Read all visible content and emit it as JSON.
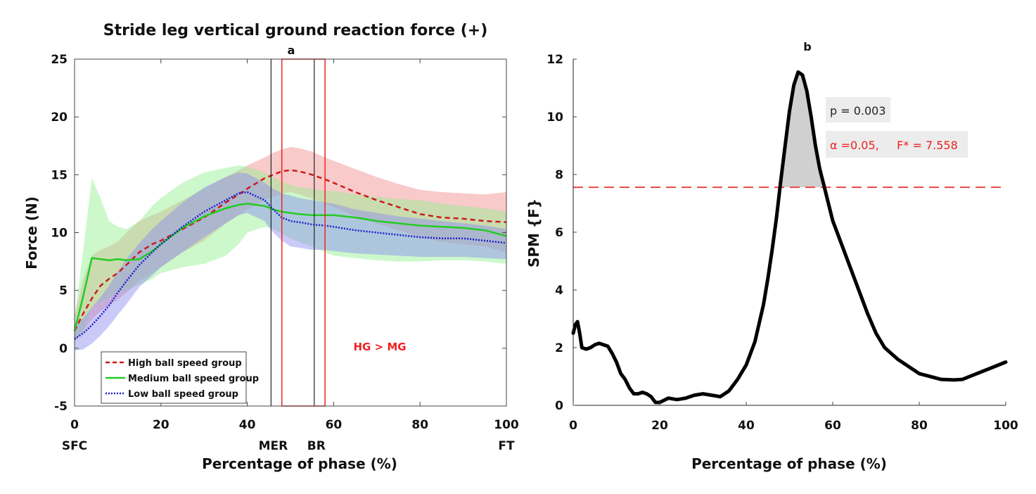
{
  "colors": {
    "high": "#cc1a1a",
    "medium": "#22cc22",
    "low": "#1a1acc",
    "high_band": "#f28a8a",
    "medium_band": "#8ff08f",
    "low_band": "#8a8af2",
    "highlight_box": "#ee2222",
    "threshold": "#ee4444",
    "spm_curve": "#000000",
    "sig_fill": "#d0d0d0",
    "annot_bg": "#ececec"
  },
  "chart_data": [
    {
      "type": "line",
      "panel_label": "a",
      "title": "Stride leg vertical ground reaction force (+)",
      "xlabel": "Percentage of phase (%)",
      "ylabel": "Force (N)",
      "xlim": [
        0,
        100
      ],
      "ylim": [
        -5,
        25
      ],
      "xticks": [
        0,
        20,
        40,
        60,
        80,
        100
      ],
      "yticks": [
        -5,
        0,
        5,
        10,
        15,
        20,
        25
      ],
      "event_labels": [
        {
          "label": "SFC",
          "x": 0
        },
        {
          "label": "MER",
          "x": 46
        },
        {
          "label": "BR",
          "x": 56
        },
        {
          "label": "FT",
          "x": 100
        }
      ],
      "event_lines_x": [
        45.5,
        55.5
      ],
      "highlight_region": {
        "x": [
          48,
          58
        ],
        "label": "HG > MG"
      },
      "legend": {
        "placement": "bottom-left",
        "entries": [
          "High ball speed group",
          "Medium ball speed group",
          "Low ball speed group"
        ]
      },
      "x": [
        0,
        2,
        4,
        6,
        8,
        10,
        12,
        15,
        18,
        20,
        25,
        30,
        35,
        38,
        40,
        44,
        46,
        48,
        50,
        52,
        55,
        58,
        60,
        65,
        70,
        75,
        80,
        85,
        90,
        95,
        100
      ],
      "series": [
        {
          "name": "High ball speed group",
          "style": "dashed",
          "values": [
            1.5,
            3.0,
            4.3,
            5.4,
            6.0,
            6.5,
            7.2,
            8.3,
            9.0,
            9.3,
            10.3,
            11.3,
            12.6,
            13.3,
            13.8,
            14.7,
            15.0,
            15.3,
            15.4,
            15.3,
            15.0,
            14.6,
            14.3,
            13.5,
            12.8,
            12.2,
            11.6,
            11.3,
            11.2,
            11.0,
            10.9
          ],
          "upper": [
            2.8,
            6.0,
            8.0,
            8.5,
            8.8,
            9.2,
            10.0,
            11.0,
            11.5,
            11.8,
            12.8,
            13.8,
            14.8,
            15.4,
            15.8,
            16.5,
            16.9,
            17.2,
            17.4,
            17.3,
            17.0,
            16.5,
            16.2,
            15.5,
            14.8,
            14.2,
            13.7,
            13.5,
            13.4,
            13.3,
            13.5
          ],
          "lower": [
            0.5,
            1.5,
            2.5,
            3.2,
            3.7,
            4.2,
            4.8,
            5.8,
            6.5,
            7.0,
            8.3,
            9.3,
            10.8,
            11.5,
            12.0,
            12.8,
            13.1,
            13.4,
            13.5,
            13.3,
            12.9,
            12.5,
            12.2,
            11.4,
            10.8,
            10.2,
            9.6,
            9.2,
            9.0,
            8.8,
            8.3
          ]
        },
        {
          "name": "Medium ball speed group",
          "style": "solid",
          "values": [
            1.5,
            4.5,
            7.8,
            7.7,
            7.6,
            7.7,
            7.6,
            7.7,
            8.4,
            9.0,
            10.4,
            11.4,
            12.1,
            12.4,
            12.5,
            12.3,
            12.0,
            11.8,
            11.7,
            11.6,
            11.5,
            11.5,
            11.5,
            11.3,
            11.0,
            10.8,
            10.6,
            10.5,
            10.4,
            10.2,
            9.7
          ],
          "upper": [
            2.5,
            8.5,
            14.7,
            13.0,
            11.0,
            10.5,
            10.3,
            11.0,
            12.3,
            13.0,
            14.3,
            15.2,
            15.6,
            15.8,
            15.7,
            15.2,
            14.8,
            14.4,
            14.1,
            13.9,
            13.8,
            13.6,
            13.6,
            13.3,
            13.1,
            12.9,
            12.8,
            12.5,
            12.3,
            12.1,
            11.8
          ],
          "lower": [
            0.5,
            1.5,
            3.5,
            4.0,
            4.4,
            4.8,
            5.0,
            5.5,
            6.0,
            6.5,
            7.0,
            7.3,
            8.0,
            9.0,
            10.0,
            10.5,
            10.3,
            9.9,
            9.5,
            9.2,
            8.8,
            8.3,
            8.0,
            7.8,
            7.6,
            7.5,
            7.5,
            7.6,
            7.6,
            7.5,
            7.3
          ]
        },
        {
          "name": "Low ball speed group",
          "style": "dotted",
          "values": [
            0.8,
            1.3,
            2.0,
            2.8,
            3.7,
            4.8,
            5.8,
            7.2,
            8.3,
            9.0,
            10.5,
            11.8,
            12.8,
            13.4,
            13.5,
            12.8,
            12.0,
            11.3,
            11.0,
            10.9,
            10.7,
            10.6,
            10.5,
            10.2,
            10.0,
            9.8,
            9.6,
            9.5,
            9.5,
            9.3,
            9.1
          ],
          "upper": [
            2.0,
            2.6,
            3.5,
            4.4,
            5.4,
            6.6,
            7.7,
            9.1,
            10.3,
            11.0,
            12.6,
            13.9,
            14.8,
            15.2,
            15.1,
            14.3,
            13.8,
            13.4,
            13.2,
            13.0,
            12.8,
            12.6,
            12.5,
            12.0,
            11.7,
            11.4,
            11.2,
            11.0,
            10.8,
            10.6,
            10.3
          ],
          "lower": [
            -0.2,
            -0.1,
            0.4,
            1.1,
            1.9,
            2.9,
            3.8,
            5.3,
            6.3,
            7.0,
            8.3,
            9.6,
            10.8,
            11.5,
            11.7,
            11.0,
            10.0,
            9.3,
            8.8,
            8.7,
            8.5,
            8.5,
            8.4,
            8.2,
            8.1,
            8.0,
            7.9,
            7.9,
            7.9,
            7.8,
            7.7
          ]
        }
      ]
    },
    {
      "type": "line",
      "panel_label": "b",
      "title": "",
      "xlabel": "Percentage of phase (%)",
      "ylabel": "SPM {F}",
      "xlim": [
        0,
        100
      ],
      "ylim": [
        0,
        12
      ],
      "xticks": [
        0,
        20,
        40,
        60,
        80,
        100
      ],
      "yticks": [
        0,
        2,
        4,
        6,
        8,
        10,
        12
      ],
      "threshold": 7.558,
      "significant_region": {
        "x": [
          48,
          57.5
        ]
      },
      "annotations": {
        "p_text": "p = 0.003",
        "alpha_symbol": "α",
        "alpha_text": " =0.05,     F* = 7.558"
      },
      "x": [
        0,
        0.5,
        1,
        1.5,
        2,
        3,
        4,
        5,
        6,
        7,
        8,
        9,
        10,
        11,
        12,
        13,
        14,
        15,
        16,
        17,
        18,
        19,
        20,
        22,
        24,
        26,
        28,
        30,
        32,
        34,
        36,
        38,
        40,
        42,
        44,
        45,
        46,
        47,
        48,
        49,
        50,
        51,
        52,
        53,
        54,
        55,
        56,
        57,
        58,
        59,
        60,
        62,
        64,
        66,
        68,
        70,
        72,
        75,
        80,
        85,
        88,
        90,
        95,
        100
      ],
      "values": [
        2.5,
        2.8,
        2.9,
        2.5,
        2.0,
        1.95,
        2.0,
        2.1,
        2.15,
        2.1,
        2.05,
        1.8,
        1.5,
        1.1,
        0.9,
        0.6,
        0.4,
        0.4,
        0.45,
        0.4,
        0.3,
        0.1,
        0.1,
        0.25,
        0.2,
        0.25,
        0.35,
        0.4,
        0.35,
        0.3,
        0.5,
        0.9,
        1.4,
        2.2,
        3.5,
        4.4,
        5.4,
        6.5,
        7.8,
        9.0,
        10.2,
        11.1,
        11.55,
        11.45,
        10.9,
        10.0,
        9.0,
        8.2,
        7.6,
        7.0,
        6.4,
        5.6,
        4.8,
        4.0,
        3.2,
        2.5,
        2.0,
        1.6,
        1.1,
        0.9,
        0.88,
        0.9,
        1.2,
        1.5
      ]
    }
  ]
}
